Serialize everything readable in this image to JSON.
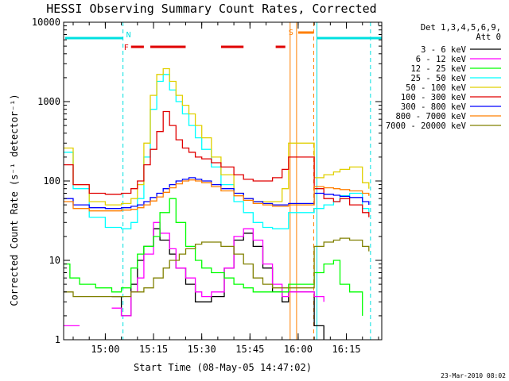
{
  "chart_data": {
    "type": "line",
    "title": "HESSI Observing Summary Count Rates, Corrected",
    "xlabel": "Start Time (08-May-05 14:47:02)",
    "ylabel": "Corrected Count Rate (s⁻¹ detector⁻¹)",
    "y_scale": "log",
    "ylim": [
      1,
      10000
    ],
    "xlim": [
      "14:47:02",
      "16:26:00"
    ],
    "x_ticks": [
      "15:00",
      "15:15",
      "15:30",
      "15:45",
      "16:00",
      "16:15"
    ],
    "y_ticks": [
      "1",
      "10",
      "100",
      "1000",
      "10000"
    ],
    "timestamp": "23-Mar-2010 08:02",
    "legend": {
      "position": "right",
      "title_lines": [
        "Det 1,3,4,5,6,9,",
        "Att 0"
      ]
    },
    "flags": [
      {
        "label": "N",
        "color": "#00e0e0"
      },
      {
        "label": "F",
        "color": "#e00000"
      },
      {
        "label": "S",
        "color": "#ff7f00"
      }
    ],
    "series": [
      {
        "name": "3 - 6 keV",
        "color": "#000000",
        "x": [
          "14:47",
          "14:52",
          "14:57",
          "15:02",
          "15:05",
          "15:08",
          "15:10",
          "15:12",
          "15:15",
          "15:17",
          "15:20",
          "15:22",
          "15:25",
          "15:28",
          "15:30",
          "15:33",
          "15:37",
          "15:40",
          "15:43",
          "15:46",
          "15:49",
          "15:52",
          "15:55",
          "15:57",
          "16:05",
          "16:08",
          "16:11",
          "16:13",
          "16:16"
        ],
        "y": [
          null,
          null,
          null,
          3.5,
          2,
          5,
          10,
          15,
          25,
          18,
          12,
          8,
          5,
          3,
          3,
          3.5,
          8,
          18,
          22,
          15,
          8,
          4,
          3,
          4,
          1.5,
          1,
          null,
          null,
          null
        ]
      },
      {
        "name": "6 - 12 keV",
        "color": "#ff00ff",
        "x": [
          "14:47",
          "14:52",
          "14:57",
          "15:02",
          "15:05",
          "15:08",
          "15:10",
          "15:12",
          "15:15",
          "15:17",
          "15:20",
          "15:22",
          "15:25",
          "15:28",
          "15:30",
          "15:33",
          "15:37",
          "15:40",
          "15:43",
          "15:46",
          "15:49",
          "15:52",
          "15:55",
          "15:57",
          "16:05",
          "16:08",
          "16:11",
          "16:13",
          "16:16"
        ],
        "y": [
          1.5,
          1.5,
          null,
          2.5,
          2,
          4,
          6,
          12,
          30,
          22,
          14,
          8,
          6,
          4,
          3.5,
          4,
          8,
          20,
          25,
          18,
          9,
          5,
          3.5,
          4,
          3.5,
          3,
          null,
          null,
          null
        ]
      },
      {
        "name": "12 - 25 keV",
        "color": "#00ff00",
        "x": [
          "14:47",
          "14:49",
          "14:52",
          "14:57",
          "15:02",
          "15:05",
          "15:08",
          "15:10",
          "15:12",
          "15:15",
          "15:17",
          "15:20",
          "15:22",
          "15:25",
          "15:28",
          "15:30",
          "15:33",
          "15:37",
          "15:40",
          "15:43",
          "15:46",
          "15:49",
          "15:52",
          "15:55",
          "15:57",
          "16:05",
          "16:08",
          "16:11",
          "16:13",
          "16:16",
          "16:20"
        ],
        "y": [
          9,
          6,
          5,
          4.5,
          4,
          4.5,
          8,
          12,
          15,
          20,
          40,
          60,
          30,
          15,
          10,
          8,
          7,
          6,
          5,
          4.5,
          4,
          4,
          4,
          4,
          5,
          7,
          9,
          10,
          5,
          4,
          2
        ]
      },
      {
        "name": "25 - 50 keV",
        "color": "#00ffff",
        "x": [
          "14:47",
          "14:50",
          "14:55",
          "15:00",
          "15:05",
          "15:08",
          "15:10",
          "15:12",
          "15:14",
          "15:16",
          "15:18",
          "15:20",
          "15:22",
          "15:24",
          "15:26",
          "15:28",
          "15:30",
          "15:33",
          "15:36",
          "15:40",
          "15:43",
          "15:46",
          "15:49",
          "15:52",
          "15:55",
          "15:57",
          "16:05",
          "16:08",
          "16:11",
          "16:13",
          "16:16",
          "16:20",
          "16:22"
        ],
        "y": [
          230,
          80,
          35,
          26,
          25,
          30,
          60,
          200,
          800,
          1800,
          2200,
          1400,
          1000,
          700,
          500,
          350,
          250,
          150,
          90,
          55,
          40,
          30,
          26,
          25,
          25,
          40,
          45,
          50,
          55,
          65,
          70,
          45,
          40
        ]
      },
      {
        "name": "50 - 100 keV",
        "color": "#e0d000",
        "x": [
          "14:47",
          "14:50",
          "14:55",
          "15:00",
          "15:05",
          "15:08",
          "15:10",
          "15:12",
          "15:14",
          "15:16",
          "15:18",
          "15:20",
          "15:22",
          "15:24",
          "15:26",
          "15:28",
          "15:30",
          "15:33",
          "15:36",
          "15:40",
          "15:43",
          "15:46",
          "15:49",
          "15:52",
          "15:55",
          "15:57",
          "16:05",
          "16:08",
          "16:11",
          "16:13",
          "16:16",
          "16:20",
          "16:22"
        ],
        "y": [
          260,
          90,
          55,
          50,
          52,
          60,
          90,
          300,
          1200,
          2200,
          2600,
          1800,
          1200,
          900,
          700,
          500,
          350,
          200,
          120,
          70,
          60,
          55,
          55,
          55,
          80,
          300,
          110,
          120,
          130,
          140,
          150,
          95,
          80
        ]
      },
      {
        "name": "100 - 300 keV",
        "color": "#e00000",
        "x": [
          "14:47",
          "14:50",
          "14:55",
          "15:00",
          "15:05",
          "15:08",
          "15:10",
          "15:12",
          "15:14",
          "15:16",
          "15:18",
          "15:20",
          "15:22",
          "15:24",
          "15:26",
          "15:28",
          "15:30",
          "15:33",
          "15:36",
          "15:40",
          "15:43",
          "15:46",
          "15:49",
          "15:52",
          "15:55",
          "15:57",
          "16:05",
          "16:08",
          "16:11",
          "16:13",
          "16:16",
          "16:20",
          "16:22"
        ],
        "y": [
          160,
          90,
          70,
          68,
          70,
          80,
          100,
          160,
          250,
          420,
          750,
          500,
          330,
          260,
          230,
          200,
          190,
          170,
          150,
          120,
          105,
          100,
          100,
          110,
          140,
          200,
          80,
          60,
          55,
          60,
          50,
          40,
          35
        ]
      },
      {
        "name": "300 - 800 keV",
        "color": "#0000ff",
        "x": [
          "14:47",
          "14:50",
          "14:55",
          "15:00",
          "15:05",
          "15:08",
          "15:10",
          "15:12",
          "15:14",
          "15:16",
          "15:18",
          "15:20",
          "15:22",
          "15:24",
          "15:26",
          "15:28",
          "15:30",
          "15:33",
          "15:36",
          "15:40",
          "15:43",
          "15:46",
          "15:49",
          "15:52",
          "15:55",
          "15:57",
          "16:05",
          "16:08",
          "16:11",
          "16:13",
          "16:16",
          "16:20",
          "16:22"
        ],
        "y": [
          60,
          50,
          46,
          45,
          46,
          48,
          50,
          55,
          62,
          70,
          80,
          90,
          100,
          105,
          110,
          105,
          100,
          90,
          80,
          70,
          60,
          55,
          52,
          50,
          50,
          52,
          70,
          68,
          66,
          64,
          62,
          55,
          50
        ]
      },
      {
        "name": "800 - 7000 keV",
        "color": "#ff7f00",
        "x": [
          "14:47",
          "14:50",
          "14:55",
          "15:00",
          "15:05",
          "15:08",
          "15:10",
          "15:12",
          "15:14",
          "15:16",
          "15:18",
          "15:20",
          "15:22",
          "15:24",
          "15:26",
          "15:28",
          "15:30",
          "15:33",
          "15:36",
          "15:40",
          "15:43",
          "15:46",
          "15:49",
          "15:52",
          "15:55",
          "15:57",
          "16:05",
          "16:08",
          "16:11",
          "16:13",
          "16:16",
          "16:20",
          "16:22"
        ],
        "y": [
          55,
          45,
          42,
          42,
          43,
          44,
          46,
          50,
          56,
          63,
          72,
          82,
          92,
          100,
          103,
          100,
          95,
          85,
          75,
          65,
          57,
          52,
          50,
          48,
          48,
          50,
          85,
          82,
          80,
          78,
          75,
          70,
          65
        ]
      },
      {
        "name": "7000 - 20000 keV",
        "color": "#808000",
        "x": [
          "14:47",
          "14:50",
          "14:55",
          "15:00",
          "15:05",
          "15:08",
          "15:10",
          "15:12",
          "15:15",
          "15:18",
          "15:20",
          "15:23",
          "15:25",
          "15:28",
          "15:30",
          "15:33",
          "15:36",
          "15:40",
          "15:43",
          "15:46",
          "15:49",
          "15:52",
          "15:55",
          "15:57",
          "16:05",
          "16:08",
          "16:11",
          "16:13",
          "16:16",
          "16:20",
          "16:22"
        ],
        "y": [
          4,
          3.5,
          3.5,
          3.5,
          3.5,
          4,
          4,
          4.5,
          6,
          8,
          10,
          12,
          14,
          16,
          17,
          17,
          15,
          12,
          9,
          6,
          5,
          4.5,
          4.5,
          4.5,
          15,
          17,
          18,
          19,
          18,
          15,
          13
        ]
      }
    ]
  }
}
